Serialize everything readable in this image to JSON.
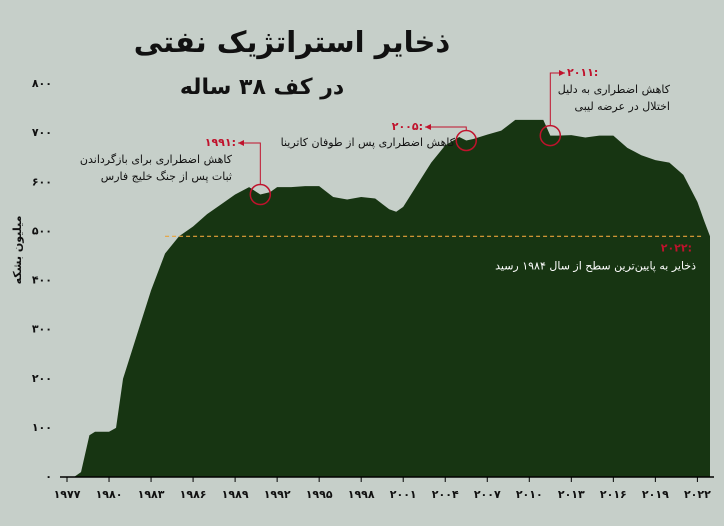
{
  "chart_data": {
    "type": "area",
    "title": "ذخایر استراتژیک نفتی",
    "subtitle": "در کف ۳۸ ساله",
    "y_label": "میلیون بشکه",
    "color": "#173512",
    "x": [
      1977.5,
      1978,
      1978.6,
      1979,
      1980,
      1980.5,
      1981,
      1982,
      1983,
      1984,
      1985,
      1986,
      1987,
      1988,
      1989,
      1990,
      1990.8,
      1991.5,
      1992,
      1993,
      1994,
      1995,
      1996,
      1997,
      1998,
      1999,
      2000,
      2000.5,
      2001,
      2002,
      2003,
      2004,
      2005,
      2005.5,
      2006,
      2007,
      2008,
      2009,
      2010,
      2011,
      2011.5,
      2012,
      2013,
      2014,
      2015,
      2016,
      2017,
      2018,
      2019,
      2020,
      2021,
      2022,
      2022.5,
      2022.9
    ],
    "values": [
      0,
      10,
      85,
      92,
      92,
      100,
      200,
      290,
      380,
      455,
      490,
      510,
      535,
      555,
      575,
      590,
      575,
      580,
      590,
      590,
      592,
      592,
      570,
      565,
      570,
      567,
      545,
      540,
      550,
      595,
      640,
      675,
      692,
      685,
      688,
      697,
      705,
      727,
      727,
      727,
      695,
      695,
      696,
      691,
      695,
      695,
      670,
      655,
      645,
      640,
      615,
      560,
      520,
      490
    ],
    "xlim": [
      1976.5,
      2022.9
    ],
    "ylim": [
      0,
      800
    ],
    "xticks": [
      {
        "value": 1977,
        "label": "۱۹۷۷"
      },
      {
        "value": 1980,
        "label": "۱۹۸۰"
      },
      {
        "value": 1983,
        "label": "۱۹۸۳"
      },
      {
        "value": 1986,
        "label": "۱۹۸۶"
      },
      {
        "value": 1989,
        "label": "۱۹۸۹"
      },
      {
        "value": 1992,
        "label": "۱۹۹۲"
      },
      {
        "value": 1995,
        "label": "۱۹۹۵"
      },
      {
        "value": 1998,
        "label": "۱۹۹۸"
      },
      {
        "value": 2001,
        "label": "۲۰۰۱"
      },
      {
        "value": 2004,
        "label": "۲۰۰۴"
      },
      {
        "value": 2007,
        "label": "۲۰۰۷"
      },
      {
        "value": 2010,
        "label": "۲۰۱۰"
      },
      {
        "value": 2013,
        "label": "۲۰۱۳"
      },
      {
        "value": 2016,
        "label": "۲۰۱۶"
      },
      {
        "value": 2019,
        "label": "۲۰۱۹"
      },
      {
        "value": 2022,
        "label": "۲۰۲۲"
      }
    ],
    "yticks": [
      {
        "value": 0,
        "label": "۰"
      },
      {
        "value": 100,
        "label": "۱۰۰"
      },
      {
        "value": 200,
        "label": "۲۰۰"
      },
      {
        "value": 300,
        "label": "۳۰۰"
      },
      {
        "value": 400,
        "label": "۴۰۰"
      },
      {
        "value": 500,
        "label": "۵۰۰"
      },
      {
        "value": 600,
        "label": "۶۰۰"
      },
      {
        "value": 700,
        "label": "۷۰۰"
      },
      {
        "value": 800,
        "label": "۸۰۰"
      }
    ],
    "annotations": [
      {
        "label": "۱۹۹۱:",
        "text": [
          "کاهش اضطراری برای بازگرداندن",
          "ثبات پس از جنگ خلیج فارس"
        ],
        "x": 1990.8,
        "y": 575
      },
      {
        "label": "۲۰۰۵:",
        "text": [
          "کاهش اضطراری پس از طوفان کاترینا"
        ],
        "x": 2005.5,
        "y": 685
      },
      {
        "label": "۲۰۱۱:",
        "text": [
          "کاهش اضطراری به دلیل",
          "اختلال در عرضه لیبی"
        ],
        "x": 2011.5,
        "y": 695
      }
    ],
    "reference_line": {
      "value": 490,
      "color": "#e8a23a",
      "label": "۲۰۲۲:",
      "text": "ذخایر به پایین‌ترین سطح از سال ۱۹۸۴ رسید"
    }
  }
}
